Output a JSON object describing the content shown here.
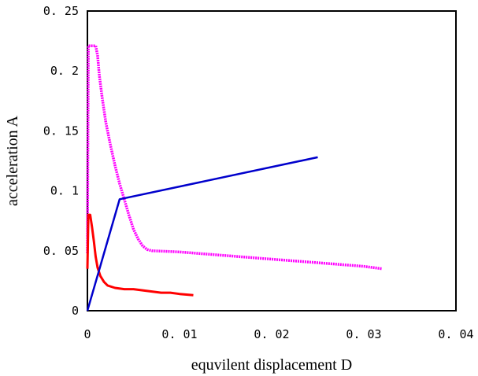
{
  "chart_data": {
    "type": "line",
    "title": "",
    "xlabel": "equvilent displacement D",
    "ylabel": "acceleration A",
    "xlim": [
      0,
      0.04
    ],
    "ylim": [
      0,
      0.25
    ],
    "x_ticks": [
      0,
      0.01,
      0.02,
      0.03,
      0.04
    ],
    "x_tick_labels": [
      "0",
      "0. 01",
      "0. 02",
      "0. 03",
      "0. 04"
    ],
    "y_ticks": [
      0,
      0.05,
      0.1,
      0.15,
      0.2,
      0.25
    ],
    "y_tick_labels": [
      "0",
      "0. 05",
      "0. 1",
      "0. 15",
      "0. 2",
      "0. 25"
    ],
    "grid": false,
    "legend": "none",
    "series": [
      {
        "color": "#ff00ff",
        "style": "dotted-thick",
        "x": [
          0,
          0.0001,
          0.0003,
          0.0006,
          0.0009,
          0.0011,
          0.0013,
          0.0016,
          0.002,
          0.0025,
          0.003,
          0.0035,
          0.004,
          0.0045,
          0.005,
          0.0055,
          0.006,
          0.0065,
          0.007,
          0.01,
          0.015,
          0.02,
          0.025,
          0.03,
          0.032
        ],
        "y": [
          0.048,
          0.221,
          0.221,
          0.221,
          0.221,
          0.213,
          0.196,
          0.178,
          0.157,
          0.138,
          0.121,
          0.106,
          0.093,
          0.08,
          0.068,
          0.06,
          0.054,
          0.051,
          0.05,
          0.049,
          0.046,
          0.043,
          0.04,
          0.037,
          0.035
        ]
      },
      {
        "color": "#ff0000",
        "style": "solid-thick",
        "x": [
          0,
          0.0001,
          0.0003,
          0.0005,
          0.0007,
          0.0009,
          0.0011,
          0.0014,
          0.0018,
          0.0022,
          0.0026,
          0.003,
          0.004,
          0.005,
          0.006,
          0.007,
          0.008,
          0.009,
          0.01,
          0.0115
        ],
        "y": [
          0.035,
          0.08,
          0.08,
          0.07,
          0.058,
          0.045,
          0.036,
          0.029,
          0.024,
          0.021,
          0.02,
          0.019,
          0.018,
          0.018,
          0.017,
          0.016,
          0.015,
          0.015,
          0.014,
          0.013
        ]
      },
      {
        "color": "#0000cc",
        "style": "solid",
        "x": [
          0,
          0.0035,
          0.025
        ],
        "y": [
          0,
          0.093,
          0.128
        ]
      }
    ]
  }
}
